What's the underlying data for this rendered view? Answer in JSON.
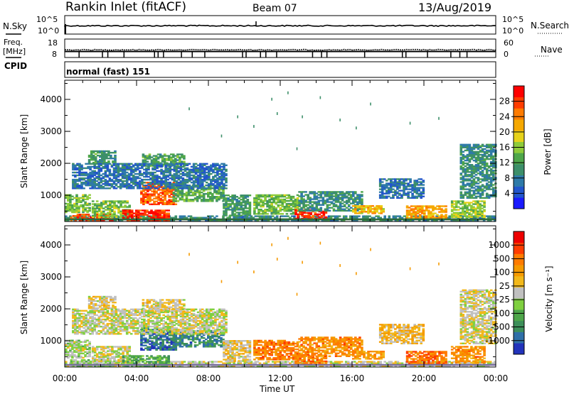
{
  "header": {
    "station": "Rankin Inlet (fitACF)",
    "beam": "Beam 07",
    "date": "13/Aug/2019"
  },
  "summary_panels": {
    "nsky_label": "N.Sky",
    "nsearch_label": "N.Search",
    "nsky_ticks": [
      "10^5",
      "10^0"
    ],
    "nsearch_ticks": [
      "10^5",
      "10^0"
    ],
    "freq_label_line1": "Freq.",
    "freq_label_line2": "[MHz]",
    "freq_ticks": [
      "18",
      "8"
    ],
    "nave_label": "Nave",
    "nave_ticks": [
      "60",
      "0"
    ],
    "cpid_label": "CPID",
    "cpid_value": "normal (fast) 151"
  },
  "x_axis": {
    "label": "Time UT",
    "ticks": [
      "00:00",
      "04:00",
      "08:00",
      "12:00",
      "16:00",
      "20:00",
      "00:00"
    ]
  },
  "chart_data": [
    {
      "type": "heatmap",
      "name": "power",
      "ylabel": "Slant Range [km]",
      "yticks": [
        "4000",
        "3000",
        "2000",
        "1000"
      ],
      "ylim": [
        180,
        4600
      ],
      "xlim_hours": [
        0,
        24
      ],
      "colorbar_label": "Power [dB]",
      "colorbar_ticks": [
        "28",
        "24",
        "20",
        "16",
        "12",
        "8",
        "4"
      ],
      "colorbar_range": [
        0,
        32
      ],
      "colors": [
        "#1a1aff",
        "#2255cc",
        "#2e7aa8",
        "#3d8f6a",
        "#4ea64a",
        "#8ecb3a",
        "#e6d21a",
        "#f5a800",
        "#ff7b00",
        "#ff3c00",
        "#ff0000"
      ],
      "regions": [
        {
          "t0": 0.0,
          "t1": 24.0,
          "r0": 190,
          "r1": 330,
          "level": 0.28
        },
        {
          "t0": 0.3,
          "t1": 2.6,
          "r0": 200,
          "r1": 420,
          "level": 0.85
        },
        {
          "t0": 0.0,
          "t1": 1.4,
          "r0": 450,
          "r1": 1000,
          "level": 0.45
        },
        {
          "t0": 1.5,
          "t1": 3.6,
          "r0": 300,
          "r1": 800,
          "level": 0.45
        },
        {
          "t0": 3.2,
          "t1": 5.8,
          "r0": 190,
          "r1": 520,
          "level": 0.9
        },
        {
          "t0": 4.2,
          "t1": 6.2,
          "r0": 700,
          "r1": 1400,
          "level": 0.82
        },
        {
          "t0": 6.0,
          "t1": 8.8,
          "r0": 800,
          "r1": 1300,
          "level": 0.4
        },
        {
          "t0": 8.8,
          "t1": 10.3,
          "r0": 350,
          "r1": 1000,
          "level": 0.35
        },
        {
          "t0": 1.3,
          "t1": 2.8,
          "r0": 2000,
          "r1": 2400,
          "level": 0.35
        },
        {
          "t0": 4.3,
          "t1": 6.6,
          "r0": 1900,
          "r1": 2300,
          "level": 0.38
        },
        {
          "t0": 0.4,
          "t1": 9.0,
          "r0": 1200,
          "r1": 2000,
          "level": 0.22
        },
        {
          "t0": 10.5,
          "t1": 13.0,
          "r0": 400,
          "r1": 1000,
          "level": 0.45
        },
        {
          "t0": 12.8,
          "t1": 14.5,
          "r0": 250,
          "r1": 550,
          "level": 0.9
        },
        {
          "t0": 13.0,
          "t1": 16.5,
          "r0": 500,
          "r1": 1100,
          "level": 0.3
        },
        {
          "t0": 16.0,
          "t1": 17.8,
          "r0": 420,
          "r1": 680,
          "level": 0.65
        },
        {
          "t0": 17.5,
          "t1": 20.0,
          "r0": 900,
          "r1": 1500,
          "level": 0.22
        },
        {
          "t0": 19.0,
          "t1": 21.2,
          "r0": 280,
          "r1": 680,
          "level": 0.7
        },
        {
          "t0": 21.5,
          "t1": 23.4,
          "r0": 300,
          "r1": 800,
          "level": 0.5
        },
        {
          "t0": 22.0,
          "t1": 24.0,
          "r0": 900,
          "r1": 2600,
          "level": 0.3
        }
      ],
      "scatter_echoes": [
        {
          "t": 12.4,
          "r": 4250
        },
        {
          "t": 11.5,
          "r": 4050
        },
        {
          "t": 14.2,
          "r": 4100
        },
        {
          "t": 17.0,
          "r": 3900
        },
        {
          "t": 11.8,
          "r": 3600
        },
        {
          "t": 13.2,
          "r": 3500
        },
        {
          "t": 15.3,
          "r": 3400
        },
        {
          "t": 9.6,
          "r": 3500
        },
        {
          "t": 10.5,
          "r": 3200
        },
        {
          "t": 8.7,
          "r": 2900
        },
        {
          "t": 19.2,
          "r": 3300
        },
        {
          "t": 6.9,
          "r": 3750
        },
        {
          "t": 20.8,
          "r": 3450
        },
        {
          "t": 16.2,
          "r": 3150
        },
        {
          "t": 12.9,
          "r": 2500
        }
      ]
    },
    {
      "type": "heatmap",
      "name": "velocity",
      "ylabel": "Slant Range [km]",
      "yticks": [
        "4000",
        "3000",
        "2000",
        "1000"
      ],
      "ylim": [
        180,
        4600
      ],
      "xlim_hours": [
        0,
        24
      ],
      "colorbar_label": "Velocity [m s⁻¹]",
      "colorbar_ticks": [
        "1000",
        "500",
        "100",
        "25",
        "-25",
        "-100",
        "-500",
        "-1000"
      ],
      "colors": [
        "#2233bb",
        "#2f6fa8",
        "#3d8f5a",
        "#4ea64a",
        "#7fd040",
        "#c0c0c0",
        "#f2b81a",
        "#f59a00",
        "#ff7b00",
        "#ff3c00",
        "#ee0000"
      ],
      "regions": [
        {
          "t0": 0.0,
          "t1": 24.0,
          "r0": 190,
          "r1": 330,
          "level": 0.5
        },
        {
          "t0": 0.3,
          "t1": 2.6,
          "r0": 200,
          "r1": 420,
          "level": 0.4
        },
        {
          "t0": 0.0,
          "t1": 1.4,
          "r0": 450,
          "r1": 1000,
          "level": 0.45
        },
        {
          "t0": 1.5,
          "t1": 3.6,
          "r0": 300,
          "r1": 800,
          "level": 0.5
        },
        {
          "t0": 3.2,
          "t1": 5.8,
          "r0": 190,
          "r1": 520,
          "level": 0.3
        },
        {
          "t0": 4.2,
          "t1": 6.2,
          "r0": 700,
          "r1": 1400,
          "level": 0.15
        },
        {
          "t0": 6.0,
          "t1": 8.8,
          "r0": 800,
          "r1": 1300,
          "level": 0.2
        },
        {
          "t0": 8.8,
          "t1": 10.3,
          "r0": 350,
          "r1": 1000,
          "level": 0.55
        },
        {
          "t0": 1.3,
          "t1": 2.8,
          "r0": 2000,
          "r1": 2400,
          "level": 0.55
        },
        {
          "t0": 4.3,
          "t1": 6.6,
          "r0": 1900,
          "r1": 2300,
          "level": 0.55
        },
        {
          "t0": 0.4,
          "t1": 9.0,
          "r0": 1200,
          "r1": 2000,
          "level": 0.5
        },
        {
          "t0": 10.5,
          "t1": 13.0,
          "r0": 400,
          "r1": 1000,
          "level": 0.75
        },
        {
          "t0": 12.8,
          "t1": 14.5,
          "r0": 250,
          "r1": 550,
          "level": 0.75
        },
        {
          "t0": 13.0,
          "t1": 16.5,
          "r0": 500,
          "r1": 1100,
          "level": 0.72
        },
        {
          "t0": 16.0,
          "t1": 17.8,
          "r0": 420,
          "r1": 680,
          "level": 0.7
        },
        {
          "t0": 17.5,
          "t1": 20.0,
          "r0": 900,
          "r1": 1500,
          "level": 0.6
        },
        {
          "t0": 19.0,
          "t1": 21.2,
          "r0": 280,
          "r1": 680,
          "level": 0.78
        },
        {
          "t0": 21.5,
          "t1": 23.4,
          "r0": 300,
          "r1": 800,
          "level": 0.72
        },
        {
          "t0": 22.0,
          "t1": 24.0,
          "r0": 900,
          "r1": 2600,
          "level": 0.52
        }
      ],
      "scatter_echoes": [
        {
          "t": 12.4,
          "r": 4250
        },
        {
          "t": 11.5,
          "r": 4050
        },
        {
          "t": 14.2,
          "r": 4100
        },
        {
          "t": 17.0,
          "r": 3900
        },
        {
          "t": 11.8,
          "r": 3600
        },
        {
          "t": 13.2,
          "r": 3500
        },
        {
          "t": 15.3,
          "r": 3400
        },
        {
          "t": 9.6,
          "r": 3500
        },
        {
          "t": 10.5,
          "r": 3200
        },
        {
          "t": 8.7,
          "r": 2900
        },
        {
          "t": 19.2,
          "r": 3300
        },
        {
          "t": 6.9,
          "r": 3750
        },
        {
          "t": 20.8,
          "r": 3450
        },
        {
          "t": 16.2,
          "r": 3150
        },
        {
          "t": 12.9,
          "r": 2500
        }
      ]
    }
  ]
}
